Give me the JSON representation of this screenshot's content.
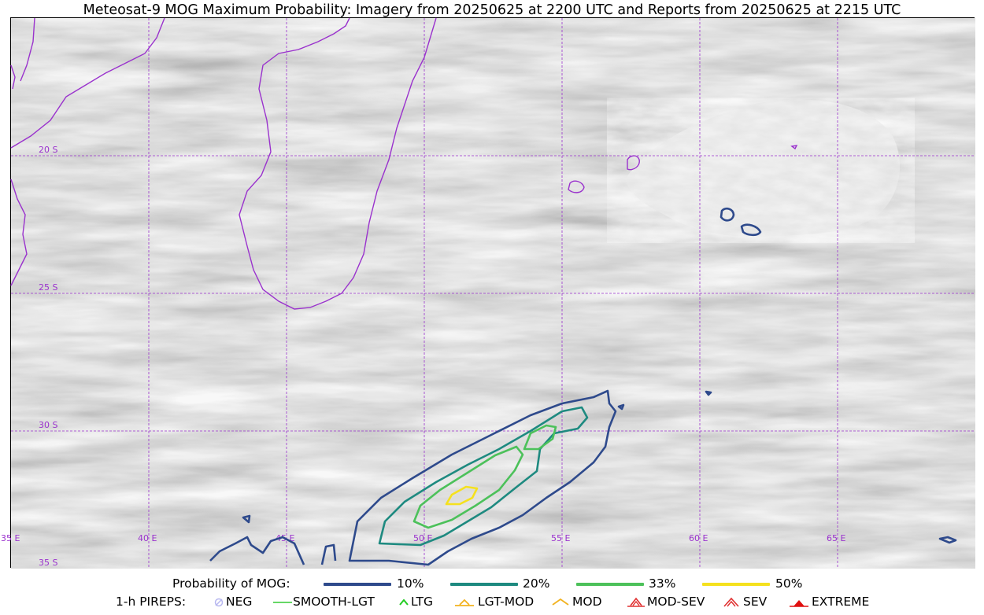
{
  "title": "Meteosat-9 MOG Maximum Probability: Imagery from 20250625 at 2200 UTC and Reports from 20250625 at 2215 UTC",
  "map": {
    "lon_labels": [
      "35 E",
      "40 E",
      "45 E",
      "50 E",
      "55 E",
      "60 E",
      "65 E"
    ],
    "lat_labels": [
      "20 S",
      "25 S",
      "30 S",
      "35 S"
    ],
    "coastline_color": "#9a32cd",
    "grid_color": "#9a32cd"
  },
  "probability_legend": {
    "label": "Probability of MOG:",
    "levels": [
      {
        "label": "10%",
        "color": "#2e4a8c"
      },
      {
        "label": "20%",
        "color": "#1e8a80"
      },
      {
        "label": "33%",
        "color": "#4cc15a"
      },
      {
        "label": "50%",
        "color": "#f5e11e"
      }
    ]
  },
  "pireps_legend": {
    "label": "1-h PIREPS:",
    "items": [
      {
        "label": "NEG",
        "icon": "neg-circle-icon",
        "color": "#b8b8f0"
      },
      {
        "label": "SMOOTH-LGT",
        "icon": "smooth-line-icon",
        "color": "#33cc33"
      },
      {
        "label": "LTG",
        "icon": "ltg-caret-icon",
        "color": "#22cc22"
      },
      {
        "label": "LGT-MOD",
        "icon": "lgt-mod-caret-icon",
        "color": "#f2b21e"
      },
      {
        "label": "MOD",
        "icon": "mod-caret-icon",
        "color": "#f2b21e"
      },
      {
        "label": "MOD-SEV",
        "icon": "mod-sev-caret-icon",
        "color": "#e03030"
      },
      {
        "label": "SEV",
        "icon": "sev-caret-icon",
        "color": "#e03030"
      },
      {
        "label": "EXTREME",
        "icon": "extreme-caret-icon",
        "color": "#e01010"
      }
    ]
  }
}
